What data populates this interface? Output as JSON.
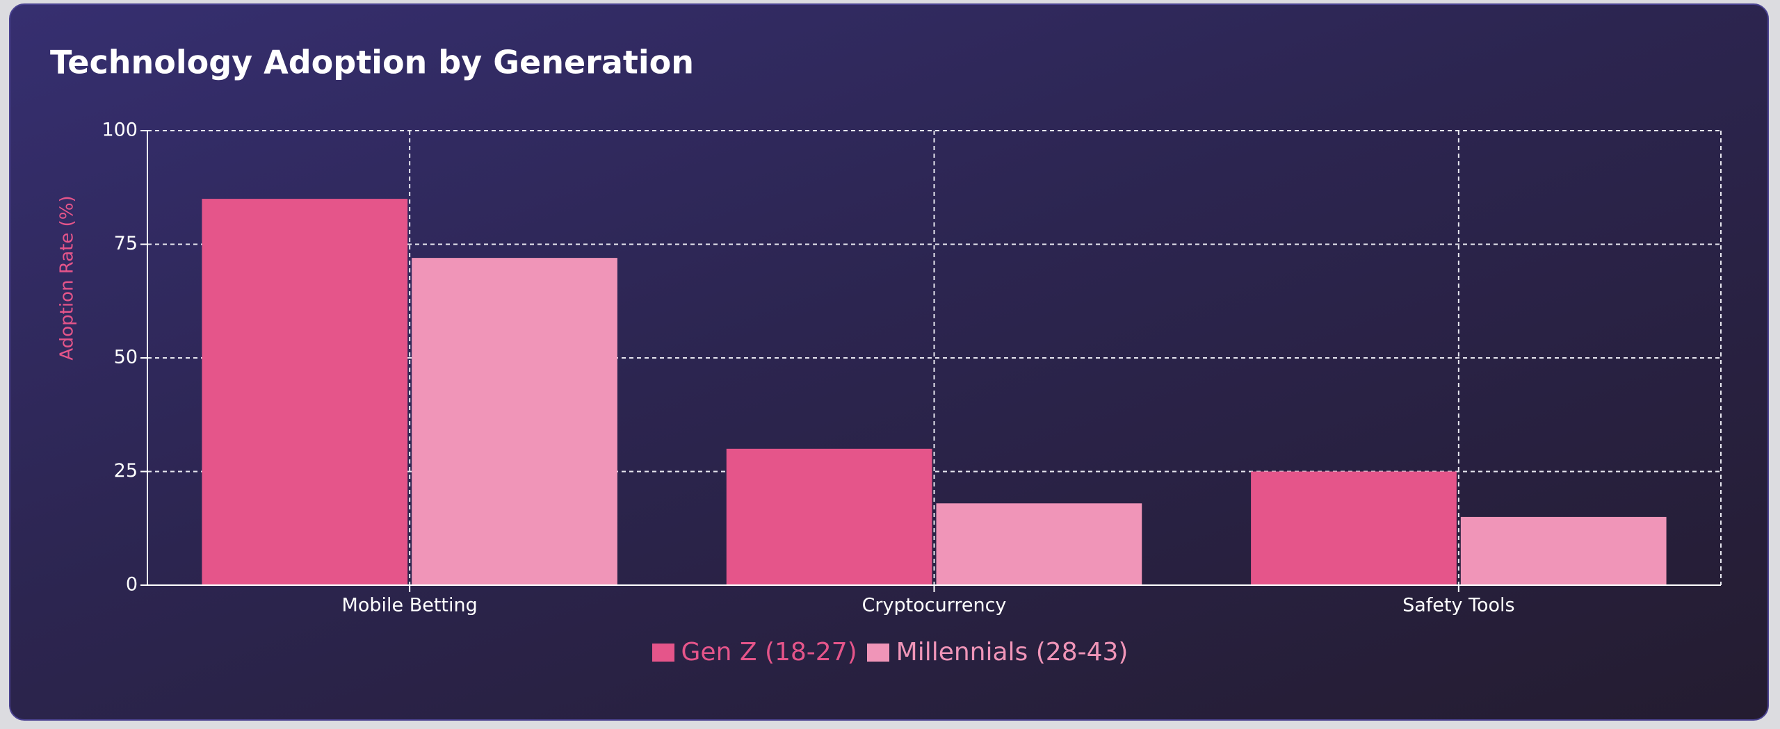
{
  "chart_data": {
    "type": "bar",
    "title": "Technology Adoption by Generation",
    "y_label": "Adoption Rate (%)",
    "categories": [
      "Mobile Betting",
      "Cryptocurrency",
      "Safety Tools"
    ],
    "series": [
      {
        "name": "Gen Z (18-27)",
        "color": "#e5558a",
        "values": [
          85,
          30,
          25
        ]
      },
      {
        "name": "Millennials (28-43)",
        "color": "#f095b8",
        "values": [
          72,
          18,
          15
        ]
      }
    ],
    "ylim": [
      0,
      100
    ],
    "yticks": [
      0,
      25,
      50,
      75,
      100
    ],
    "grid": true
  }
}
